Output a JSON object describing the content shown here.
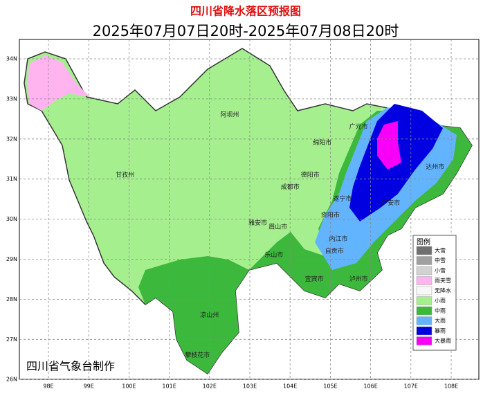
{
  "header": {
    "title": "四川省降水落区预报图",
    "subtitle": "2025年07月07日20时-2025年07月08日20时"
  },
  "map": {
    "lat_ticks": [
      {
        "value": 34,
        "label": "34N"
      },
      {
        "value": 33,
        "label": "33N"
      },
      {
        "value": 32,
        "label": "32N"
      },
      {
        "value": 31,
        "label": "31N"
      },
      {
        "value": 30,
        "label": "30N"
      },
      {
        "value": 29,
        "label": "29N"
      },
      {
        "value": 28,
        "label": "28N"
      },
      {
        "value": 27,
        "label": "27N"
      },
      {
        "value": 26,
        "label": "26N"
      }
    ],
    "lon_ticks": [
      {
        "value": 98,
        "label": "98E"
      },
      {
        "value": 99,
        "label": "99E"
      },
      {
        "value": 100,
        "label": "100E"
      },
      {
        "value": 101,
        "label": "101E"
      },
      {
        "value": 102,
        "label": "102E"
      },
      {
        "value": 103,
        "label": "103E"
      },
      {
        "value": 104,
        "label": "104E"
      },
      {
        "value": 105,
        "label": "105E"
      },
      {
        "value": 106,
        "label": "106E"
      },
      {
        "value": 107,
        "label": "107E"
      },
      {
        "value": 108,
        "label": "108E"
      }
    ],
    "places": [
      {
        "name": "阿坝州",
        "lon": 102.5,
        "lat": 32.6
      },
      {
        "name": "广元市",
        "lon": 105.7,
        "lat": 32.3
      },
      {
        "name": "绵阳市",
        "lon": 104.8,
        "lat": 31.9
      },
      {
        "name": "甘孜州",
        "lon": 99.9,
        "lat": 31.1
      },
      {
        "name": "德阳市",
        "lon": 104.5,
        "lat": 31.1
      },
      {
        "name": "成都市",
        "lon": 104.0,
        "lat": 30.8
      },
      {
        "name": "达州市",
        "lon": 107.6,
        "lat": 31.3
      },
      {
        "name": "遂宁市",
        "lon": 105.3,
        "lat": 30.5
      },
      {
        "name": "广安市",
        "lon": 106.5,
        "lat": 30.4
      },
      {
        "name": "资阳市",
        "lon": 105.0,
        "lat": 30.1
      },
      {
        "name": "雅安市",
        "lon": 103.2,
        "lat": 29.9
      },
      {
        "name": "眉山市",
        "lon": 103.7,
        "lat": 29.8
      },
      {
        "name": "内江市",
        "lon": 105.2,
        "lat": 29.5
      },
      {
        "name": "自贡市",
        "lon": 105.1,
        "lat": 29.2
      },
      {
        "name": "乐山市",
        "lon": 103.6,
        "lat": 29.1
      },
      {
        "name": "宜宾市",
        "lon": 104.6,
        "lat": 28.5
      },
      {
        "name": "泸州市",
        "lon": 105.7,
        "lat": 28.5
      },
      {
        "name": "凉山州",
        "lon": 102.0,
        "lat": 27.6
      },
      {
        "name": "攀枝花市",
        "lon": 101.7,
        "lat": 26.6
      }
    ]
  },
  "legend": {
    "title": "图例",
    "items": [
      {
        "label": "大雪",
        "color": "#707070"
      },
      {
        "label": "中雪",
        "color": "#a0a0a0"
      },
      {
        "label": "小雪",
        "color": "#d2d2d2"
      },
      {
        "label": "雨夹雪",
        "color": "#ffb4f0"
      },
      {
        "label": "无降水",
        "color": "#f7f7f7"
      },
      {
        "label": "小雨",
        "color": "#a5ef8e"
      },
      {
        "label": "中雨",
        "color": "#3cb93c"
      },
      {
        "label": "大雨",
        "color": "#63b4ff"
      },
      {
        "label": "暴雨",
        "color": "#0000e0"
      },
      {
        "label": "大暴雨",
        "color": "#f800f8"
      }
    ]
  },
  "footer": {
    "credit": "四川省气象台制作"
  }
}
